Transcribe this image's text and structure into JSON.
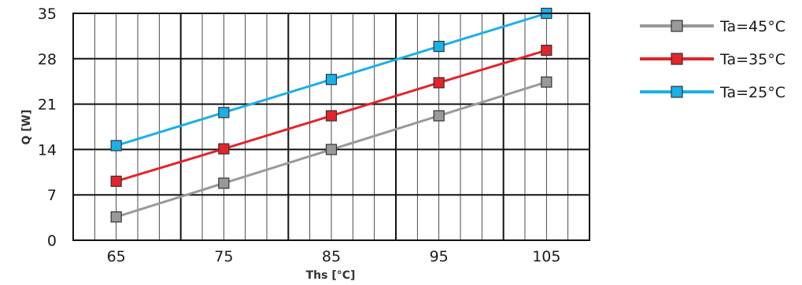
{
  "chart_data": {
    "type": "line",
    "xlabel": "Ths [°C]",
    "ylabel": "Q [W]",
    "x": [
      65,
      75,
      85,
      95,
      105
    ],
    "xticks": [
      65,
      75,
      85,
      95,
      105
    ],
    "xticklabels": [
      "65",
      "75",
      "85",
      "95",
      "105"
    ],
    "xlim": [
      61,
      109
    ],
    "ylim": [
      0,
      35
    ],
    "yticks": [
      0,
      7,
      14,
      21,
      28,
      35
    ],
    "yticklabels": [
      "0",
      "7",
      "14",
      "21",
      "28",
      "35"
    ],
    "grid": true,
    "legend_position": "right",
    "series": [
      {
        "name": "Ta=45°C",
        "color": "#999999",
        "values": [
          3.6,
          8.8,
          14.0,
          19.2,
          24.4
        ]
      },
      {
        "name": "Ta=35°C",
        "color": "#e3242b",
        "values": [
          9.1,
          14.1,
          19.2,
          24.3,
          29.3
        ]
      },
      {
        "name": "Ta=25°C",
        "color": "#1ab0e8",
        "values": [
          14.6,
          19.7,
          24.8,
          29.9,
          35.0
        ]
      }
    ]
  }
}
